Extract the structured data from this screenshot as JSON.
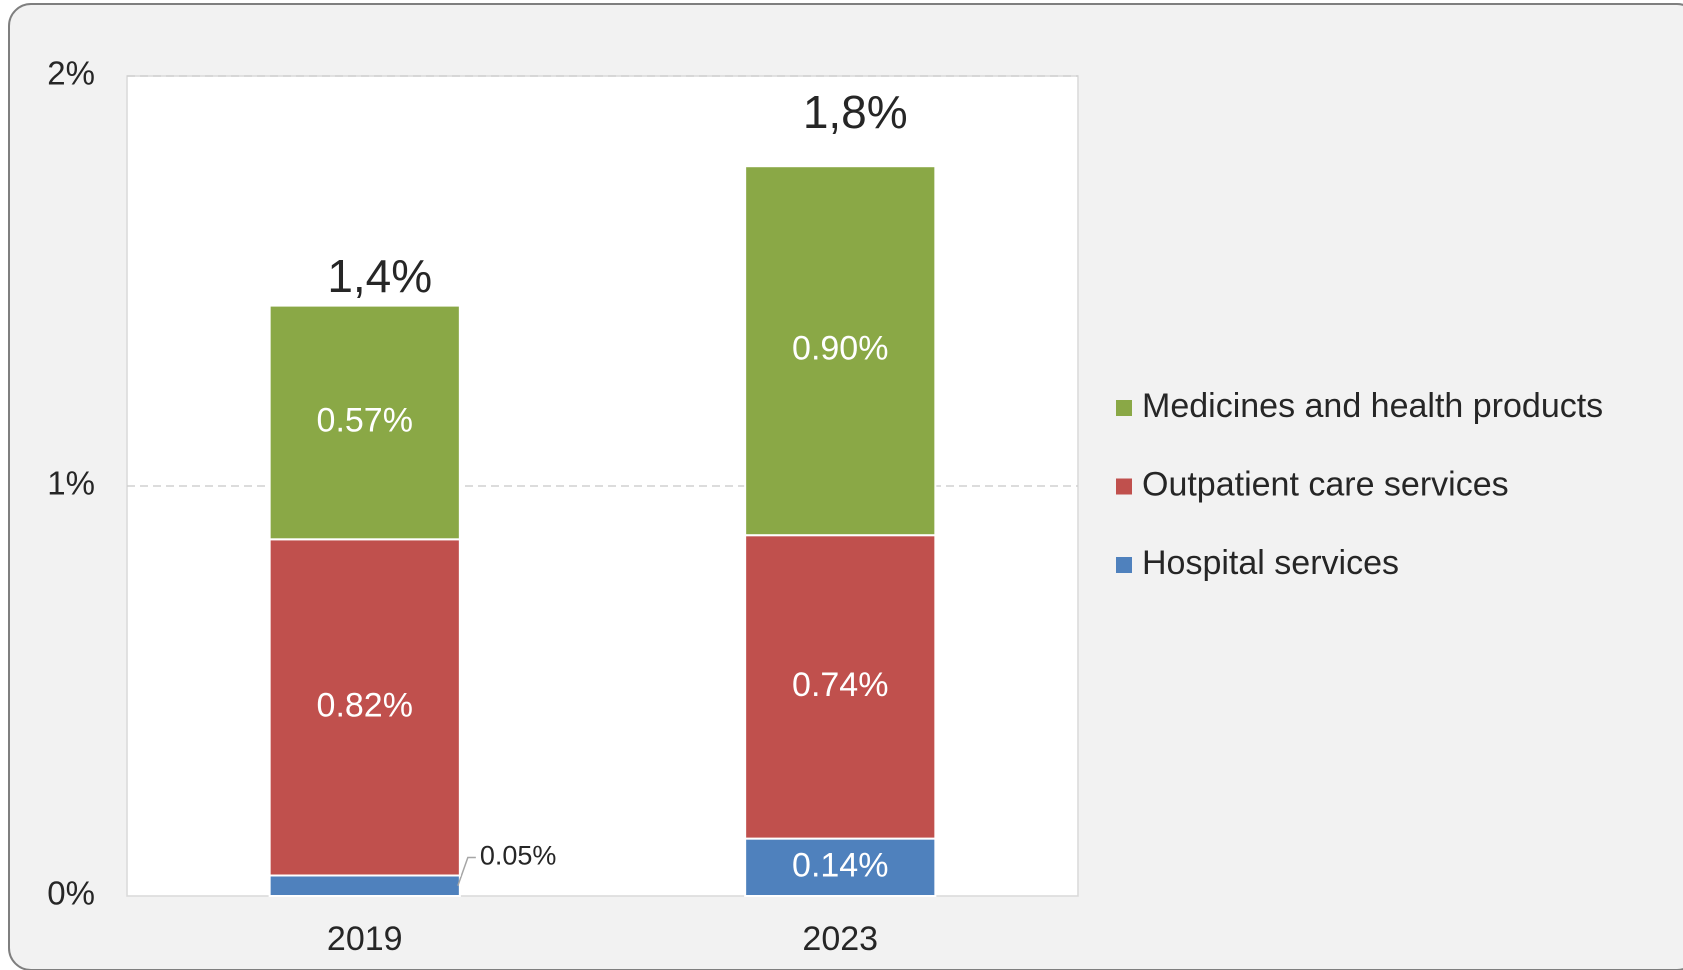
{
  "chart_data": {
    "type": "stacked_bar",
    "categories": [
      "2019",
      "2023"
    ],
    "series": [
      {
        "name": "Hospital services",
        "color": "#4f81bd",
        "values": [
          0.05,
          0.14
        ],
        "value_labels": [
          "0.05%",
          "0.14%"
        ]
      },
      {
        "name": "Outpatient care services",
        "color": "#c0504d",
        "values": [
          0.82,
          0.74
        ],
        "value_labels": [
          "0.82%",
          "0.74%"
        ]
      },
      {
        "name": "Medicines and health products",
        "color": "#8aa846",
        "values": [
          0.57,
          0.9
        ],
        "value_labels": [
          "0.57%",
          "0.90%"
        ]
      }
    ],
    "totals": {
      "values": [
        1.4,
        1.8
      ],
      "value_labels": [
        "1,4%",
        "1,8%"
      ]
    },
    "ylim": [
      0,
      2
    ],
    "yticks": [
      {
        "value": 0,
        "label": "0%"
      },
      {
        "value": 1,
        "label": "1%"
      },
      {
        "value": 2,
        "label": "2%"
      }
    ],
    "grid": true,
    "legend": "right"
  }
}
